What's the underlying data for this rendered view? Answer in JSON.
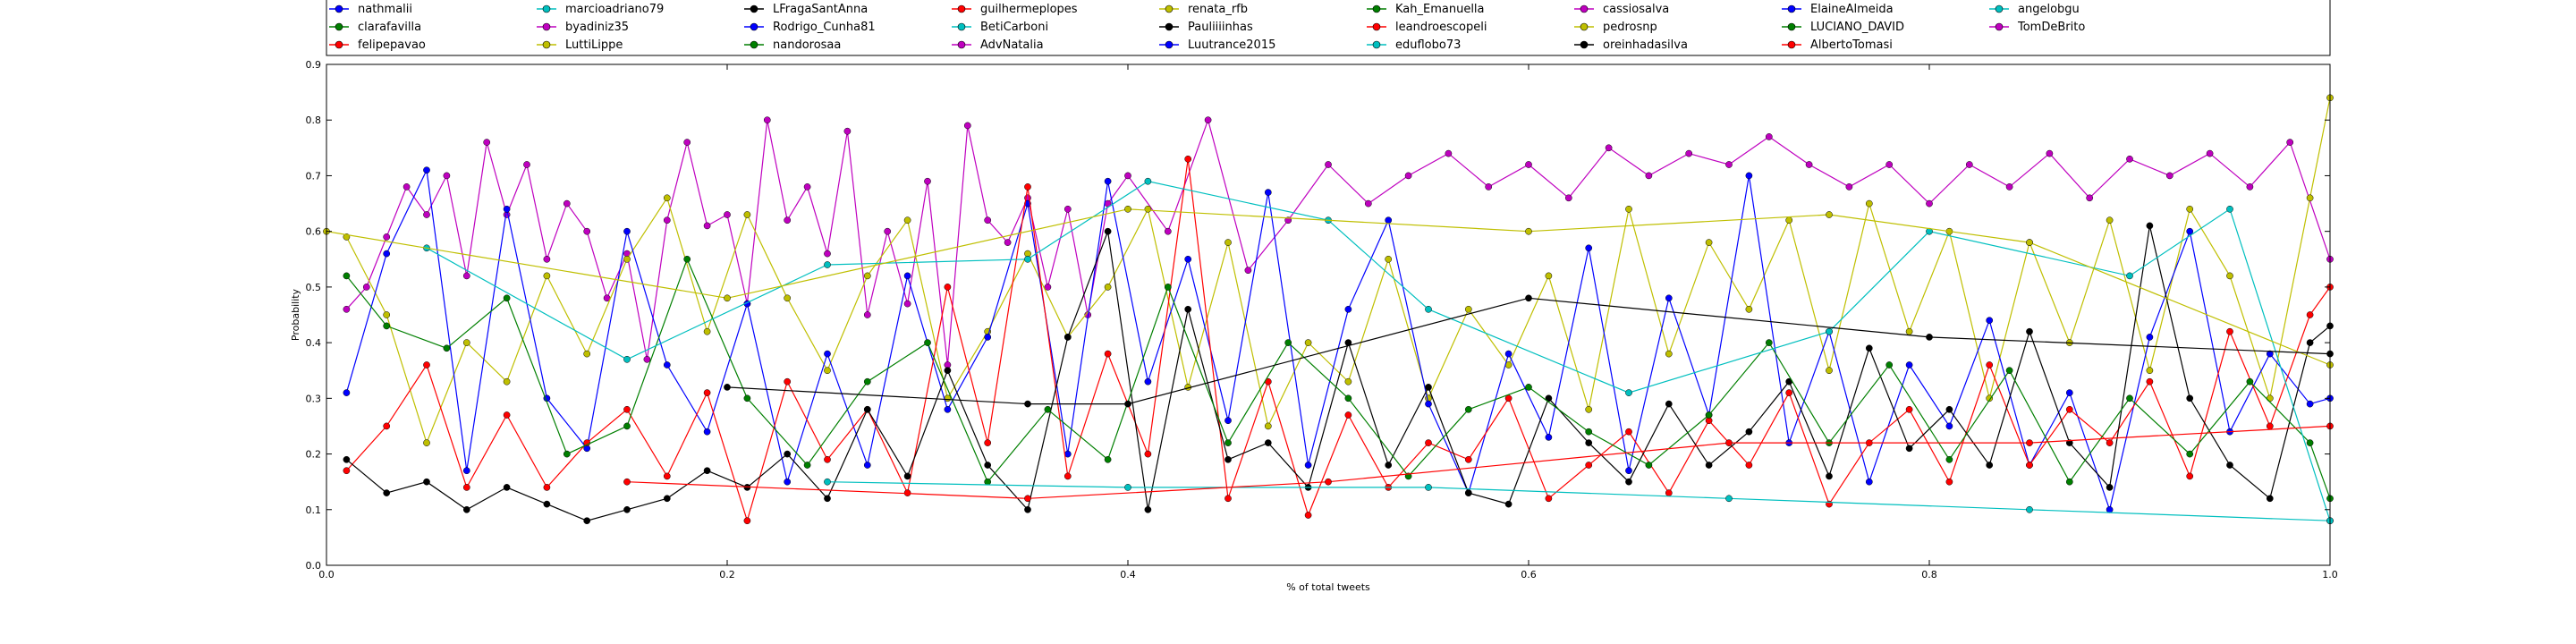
{
  "chart_data": {
    "type": "line",
    "xlabel": "% of total tweets",
    "ylabel": "Probability",
    "xlim": [
      0,
      1
    ],
    "ylim": [
      0,
      0.9
    ],
    "x_ticks": [
      "0.0",
      "0.2",
      "0.4",
      "0.6",
      "0.8",
      "1.0"
    ],
    "y_ticks": [
      "0.0",
      "0.1",
      "0.2",
      "0.3",
      "0.4",
      "0.5",
      "0.6",
      "0.7",
      "0.8",
      "0.9"
    ],
    "grid": false,
    "legend_position": "top",
    "legend": [
      {
        "name": "nathmalii",
        "color": "#0000ff"
      },
      {
        "name": "clarafavilla",
        "color": "#007f00"
      },
      {
        "name": "felipepavao",
        "color": "#ff0000"
      },
      {
        "name": "marcioadriano79",
        "color": "#00bfbf"
      },
      {
        "name": "byadiniz35",
        "color": "#bf00bf"
      },
      {
        "name": "LuttiLippe",
        "color": "#bfbf00"
      },
      {
        "name": "LFragaSantAnna",
        "color": "#000000"
      },
      {
        "name": "Rodrigo_Cunha81",
        "color": "#0000ff"
      },
      {
        "name": "nandorosaa",
        "color": "#007f00"
      },
      {
        "name": "guilhermeplopes",
        "color": "#ff0000"
      },
      {
        "name": "BetiCarboni",
        "color": "#00bfbf"
      },
      {
        "name": "AdvNatalia",
        "color": "#bf00bf"
      },
      {
        "name": "renata_rfb",
        "color": "#bfbf00"
      },
      {
        "name": "Pauliiiinhas",
        "color": "#000000"
      },
      {
        "name": "Luutrance2015",
        "color": "#0000ff"
      },
      {
        "name": "Kah_Emanuella",
        "color": "#007f00"
      },
      {
        "name": "leandroescopeli",
        "color": "#ff0000"
      },
      {
        "name": "eduflobo73",
        "color": "#00bfbf"
      },
      {
        "name": "cassiosalva",
        "color": "#bf00bf"
      },
      {
        "name": "pedrosnp",
        "color": "#bfbf00"
      },
      {
        "name": "oreinhadasilva",
        "color": "#000000"
      },
      {
        "name": "ElaineAlmeida",
        "color": "#0000ff"
      },
      {
        "name": "LUCIANO_DAVID",
        "color": "#007f00"
      },
      {
        "name": "AlbertoTomasi",
        "color": "#ff0000"
      },
      {
        "name": "angelobgu",
        "color": "#00bfbf"
      },
      {
        "name": "TomDeBrito",
        "color": "#bf00bf"
      }
    ],
    "series": [
      {
        "name": "TomDeBrito",
        "color": "#bf00bf",
        "x": [
          0.01,
          0.02,
          0.03,
          0.04,
          0.05,
          0.06,
          0.07,
          0.08,
          0.09,
          0.1,
          0.11,
          0.12,
          0.13,
          0.14,
          0.15,
          0.16,
          0.17,
          0.18,
          0.19,
          0.2,
          0.21,
          0.22,
          0.23,
          0.24,
          0.25,
          0.26,
          0.27,
          0.28,
          0.29,
          0.3,
          0.31,
          0.32,
          0.33,
          0.34,
          0.35,
          0.36,
          0.37,
          0.38,
          0.39,
          0.4,
          0.42,
          0.44,
          0.46,
          0.48,
          0.5,
          0.52,
          0.54,
          0.56,
          0.58,
          0.6,
          0.62,
          0.64,
          0.66,
          0.68,
          0.7,
          0.72,
          0.74,
          0.76,
          0.78,
          0.8,
          0.82,
          0.84,
          0.86,
          0.88,
          0.9,
          0.92,
          0.94,
          0.96,
          0.98,
          1.0
        ],
        "y": [
          0.46,
          0.5,
          0.59,
          0.68,
          0.63,
          0.7,
          0.52,
          0.76,
          0.63,
          0.72,
          0.55,
          0.65,
          0.6,
          0.48,
          0.56,
          0.37,
          0.62,
          0.76,
          0.61,
          0.63,
          0.47,
          0.8,
          0.62,
          0.68,
          0.56,
          0.78,
          0.45,
          0.6,
          0.47,
          0.69,
          0.36,
          0.79,
          0.62,
          0.58,
          0.66,
          0.5,
          0.64,
          0.45,
          0.65,
          0.7,
          0.6,
          0.8,
          0.53,
          0.62,
          0.72,
          0.65,
          0.7,
          0.74,
          0.68,
          0.72,
          0.66,
          0.75,
          0.7,
          0.74,
          0.72,
          0.77,
          0.72,
          0.68,
          0.72,
          0.65,
          0.72,
          0.68,
          0.74,
          0.66,
          0.73,
          0.7,
          0.74,
          0.68,
          0.76,
          0.55
        ]
      },
      {
        "name": "pedrosnp",
        "color": "#bfbf00",
        "x": [
          0.01,
          0.03,
          0.05,
          0.07,
          0.09,
          0.11,
          0.13,
          0.15,
          0.17,
          0.19,
          0.21,
          0.23,
          0.25,
          0.27,
          0.29,
          0.31,
          0.33,
          0.35,
          0.37,
          0.39,
          0.41,
          0.43,
          0.45,
          0.47,
          0.49,
          0.51,
          0.53,
          0.55,
          0.57,
          0.59,
          0.61,
          0.63,
          0.65,
          0.67,
          0.69,
          0.71,
          0.73,
          0.75,
          0.77,
          0.79,
          0.81,
          0.83,
          0.85,
          0.87,
          0.89,
          0.91,
          0.93,
          0.95,
          0.97,
          0.99,
          1.0
        ],
        "y": [
          0.59,
          0.45,
          0.22,
          0.4,
          0.33,
          0.52,
          0.38,
          0.55,
          0.66,
          0.42,
          0.63,
          0.48,
          0.35,
          0.52,
          0.62,
          0.3,
          0.42,
          0.56,
          0.41,
          0.5,
          0.64,
          0.32,
          0.58,
          0.25,
          0.4,
          0.33,
          0.55,
          0.3,
          0.46,
          0.36,
          0.52,
          0.28,
          0.64,
          0.38,
          0.58,
          0.46,
          0.62,
          0.35,
          0.65,
          0.42,
          0.6,
          0.3,
          0.58,
          0.4,
          0.62,
          0.35,
          0.64,
          0.52,
          0.3,
          0.66,
          0.84
        ]
      },
      {
        "name": "nathmalii",
        "color": "#0000ff",
        "x": [
          0.01,
          0.03,
          0.05,
          0.07,
          0.09,
          0.11,
          0.13,
          0.15,
          0.17,
          0.19,
          0.21,
          0.23,
          0.25,
          0.27,
          0.29,
          0.31,
          0.33,
          0.35,
          0.37,
          0.39,
          0.41,
          0.43,
          0.45,
          0.47,
          0.49,
          0.51,
          0.53,
          0.55,
          0.57,
          0.59,
          0.61,
          0.63,
          0.65,
          0.67,
          0.69,
          0.71,
          0.73,
          0.75,
          0.77,
          0.79,
          0.81,
          0.83,
          0.85,
          0.87,
          0.89,
          0.91,
          0.93,
          0.95,
          0.97,
          0.99,
          1.0
        ],
        "y": [
          0.31,
          0.56,
          0.71,
          0.17,
          0.64,
          0.3,
          0.21,
          0.6,
          0.36,
          0.24,
          0.47,
          0.15,
          0.38,
          0.18,
          0.52,
          0.28,
          0.41,
          0.65,
          0.2,
          0.69,
          0.33,
          0.55,
          0.26,
          0.67,
          0.18,
          0.46,
          0.62,
          0.29,
          0.13,
          0.38,
          0.23,
          0.57,
          0.17,
          0.48,
          0.27,
          0.7,
          0.22,
          0.42,
          0.15,
          0.36,
          0.25,
          0.44,
          0.18,
          0.31,
          0.1,
          0.41,
          0.6,
          0.24,
          0.38,
          0.29,
          0.3
        ]
      },
      {
        "name": "felipepavao",
        "color": "#ff0000",
        "x": [
          0.01,
          0.03,
          0.05,
          0.07,
          0.09,
          0.11,
          0.13,
          0.15,
          0.17,
          0.19,
          0.21,
          0.23,
          0.25,
          0.27,
          0.29,
          0.31,
          0.33,
          0.35,
          0.37,
          0.39,
          0.41,
          0.43,
          0.45,
          0.47,
          0.49,
          0.51,
          0.53,
          0.55,
          0.57,
          0.59,
          0.61,
          0.63,
          0.65,
          0.67,
          0.69,
          0.71,
          0.73,
          0.75,
          0.77,
          0.79,
          0.81,
          0.83,
          0.85,
          0.87,
          0.89,
          0.91,
          0.93,
          0.95,
          0.97,
          0.99,
          1.0
        ],
        "y": [
          0.17,
          0.25,
          0.36,
          0.14,
          0.27,
          0.14,
          0.22,
          0.28,
          0.16,
          0.31,
          0.08,
          0.33,
          0.19,
          0.28,
          0.13,
          0.5,
          0.22,
          0.68,
          0.16,
          0.38,
          0.2,
          0.73,
          0.12,
          0.33,
          0.09,
          0.27,
          0.14,
          0.22,
          0.19,
          0.3,
          0.12,
          0.18,
          0.24,
          0.13,
          0.26,
          0.18,
          0.31,
          0.11,
          0.22,
          0.28,
          0.15,
          0.36,
          0.18,
          0.28,
          0.22,
          0.33,
          0.16,
          0.42,
          0.25,
          0.45,
          0.5
        ]
      },
      {
        "name": "LFragaSantAnna",
        "color": "#000000",
        "x": [
          0.01,
          0.03,
          0.05,
          0.07,
          0.09,
          0.11,
          0.13,
          0.15,
          0.17,
          0.19,
          0.21,
          0.23,
          0.25,
          0.27,
          0.29,
          0.31,
          0.33,
          0.35,
          0.37,
          0.39,
          0.41,
          0.43,
          0.45,
          0.47,
          0.49,
          0.51,
          0.53,
          0.55,
          0.57,
          0.59,
          0.61,
          0.63,
          0.65,
          0.67,
          0.69,
          0.71,
          0.73,
          0.75,
          0.77,
          0.79,
          0.81,
          0.83,
          0.85,
          0.87,
          0.89,
          0.91,
          0.93,
          0.95,
          0.97,
          0.99,
          1.0
        ],
        "y": [
          0.19,
          0.13,
          0.15,
          0.1,
          0.14,
          0.11,
          0.08,
          0.1,
          0.12,
          0.17,
          0.14,
          0.2,
          0.12,
          0.28,
          0.16,
          0.35,
          0.18,
          0.1,
          0.41,
          0.6,
          0.1,
          0.46,
          0.19,
          0.22,
          0.14,
          0.4,
          0.18,
          0.32,
          0.13,
          0.11,
          0.3,
          0.22,
          0.15,
          0.29,
          0.18,
          0.24,
          0.33,
          0.16,
          0.39,
          0.21,
          0.28,
          0.18,
          0.42,
          0.22,
          0.14,
          0.61,
          0.3,
          0.18,
          0.12,
          0.4,
          0.43
        ]
      },
      {
        "name": "clarafavilla",
        "color": "#007f00",
        "x": [
          0.01,
          0.03,
          0.06,
          0.09,
          0.12,
          0.15,
          0.18,
          0.21,
          0.24,
          0.27,
          0.3,
          0.33,
          0.36,
          0.39,
          0.42,
          0.45,
          0.48,
          0.51,
          0.54,
          0.57,
          0.6,
          0.63,
          0.66,
          0.69,
          0.72,
          0.75,
          0.78,
          0.81,
          0.84,
          0.87,
          0.9,
          0.93,
          0.96,
          0.99,
          1.0
        ],
        "y": [
          0.52,
          0.43,
          0.39,
          0.48,
          0.2,
          0.25,
          0.55,
          0.3,
          0.18,
          0.33,
          0.4,
          0.15,
          0.28,
          0.19,
          0.5,
          0.22,
          0.4,
          0.3,
          0.16,
          0.28,
          0.32,
          0.24,
          0.18,
          0.27,
          0.4,
          0.22,
          0.36,
          0.19,
          0.35,
          0.15,
          0.3,
          0.2,
          0.33,
          0.22,
          0.12
        ]
      },
      {
        "name": "marcioadriano79",
        "color": "#00bfbf",
        "x": [
          0.05,
          0.15,
          0.25,
          0.35,
          0.41,
          0.5,
          0.55,
          0.65,
          0.75,
          0.8,
          0.9,
          0.95,
          1.0
        ],
        "y": [
          0.57,
          0.37,
          0.54,
          0.55,
          0.69,
          0.62,
          0.46,
          0.31,
          0.42,
          0.6,
          0.52,
          0.64,
          0.08
        ]
      },
      {
        "name": "LuttiLippe",
        "color": "#bfbf00",
        "x": [
          0.0,
          0.2,
          0.4,
          0.6,
          0.75,
          0.85,
          1.0
        ],
        "y": [
          0.6,
          0.48,
          0.64,
          0.6,
          0.63,
          0.58,
          0.36
        ]
      },
      {
        "name": "Pauliiiinhas",
        "color": "#000000",
        "x": [
          0.2,
          0.35,
          0.4,
          0.6,
          0.8,
          1.0
        ],
        "y": [
          0.32,
          0.29,
          0.29,
          0.48,
          0.41,
          0.38
        ]
      },
      {
        "name": "eduflobo73",
        "color": "#00bfbf",
        "x": [
          0.25,
          0.4,
          0.55,
          0.7,
          0.85,
          1.0
        ],
        "y": [
          0.15,
          0.14,
          0.14,
          0.12,
          0.1,
          0.08
        ]
      },
      {
        "name": "leandroescopeli",
        "color": "#ff0000",
        "x": [
          0.15,
          0.35,
          0.5,
          0.7,
          0.85,
          1.0
        ],
        "y": [
          0.15,
          0.12,
          0.15,
          0.22,
          0.22,
          0.25
        ]
      }
    ]
  }
}
